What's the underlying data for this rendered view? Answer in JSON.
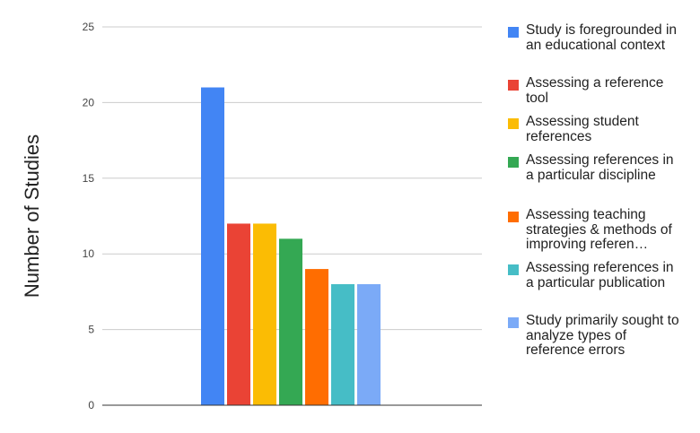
{
  "chart_data": {
    "type": "bar",
    "categories": [
      ""
    ],
    "ylabel": "Number of Studies",
    "xlabel": "",
    "ylim": [
      0,
      25
    ],
    "yticks": [
      0,
      5,
      10,
      15,
      20,
      25
    ],
    "grid": true,
    "legend_position": "right",
    "series": [
      {
        "name": "Study is foregrounded in an educational context",
        "values": [
          21
        ],
        "color": "#4285f4"
      },
      {
        "name": "Assessing a reference tool",
        "values": [
          12
        ],
        "color": "#ea4335"
      },
      {
        "name": "Assessing student references",
        "values": [
          12
        ],
        "color": "#fbbc04"
      },
      {
        "name": "Assessing references in a particular discipline",
        "values": [
          11
        ],
        "color": "#34a853"
      },
      {
        "name": "Assessing teaching strategies & methods of improving referen…",
        "values": [
          9
        ],
        "color": "#ff6d01"
      },
      {
        "name": "Assessing references in a particular publication",
        "values": [
          8
        ],
        "color": "#46bdc6"
      },
      {
        "name": "Study primarily sought to analyze types of reference errors",
        "values": [
          8
        ],
        "color": "#7baaf7"
      }
    ]
  }
}
